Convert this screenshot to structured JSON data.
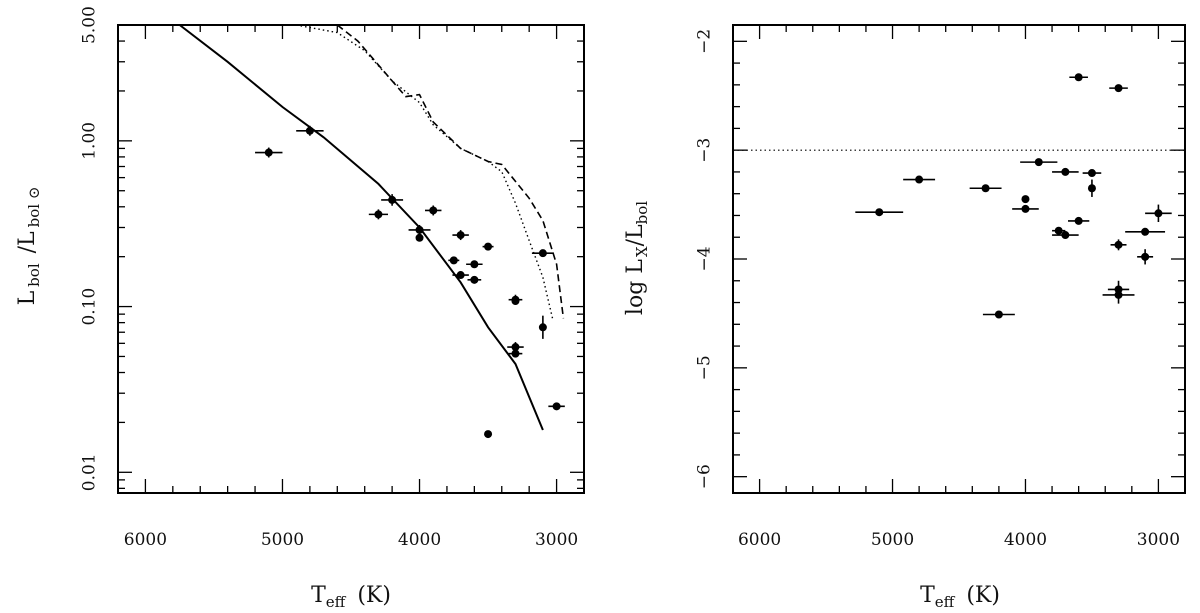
{
  "chart_data": [
    {
      "type": "scatter",
      "title": "",
      "xlabel": {
        "main": "T",
        "sub": "eff",
        "unit": "(K)"
      },
      "ylabel": {
        "main1": "L",
        "sub1": "bol",
        "sep": "/L",
        "sub2": "bol ⊙"
      },
      "xlim": [
        6200,
        2800
      ],
      "ylim": [
        0.0075,
        5.0
      ],
      "yscale": "log",
      "xticks": [
        6000,
        5000,
        4000,
        3000
      ],
      "xtick_labels": [
        "6000",
        "5000",
        "4000",
        "3000"
      ],
      "yticks": [
        0.01,
        0.1,
        1.0,
        5.0
      ],
      "ytick_labels": [
        "0.01",
        "0.10",
        "1.00",
        "5.00"
      ],
      "series": [
        {
          "name": "stars",
          "style": "points",
          "x": [
            5100,
            4800,
            4300,
            4200,
            4000,
            4000,
            3900,
            3750,
            3700,
            3700,
            3600,
            3600,
            3500,
            3500,
            3300,
            3300,
            3300,
            3300,
            3100,
            3100,
            3000
          ],
          "y": [
            0.85,
            1.15,
            0.36,
            0.44,
            0.29,
            0.26,
            0.38,
            0.19,
            0.27,
            0.155,
            0.18,
            0.145,
            0.23,
            0.017,
            0.11,
            0.108,
            0.057,
            0.052,
            0.21,
            0.075,
            0.025
          ],
          "xerr": [
            100,
            100,
            70,
            80,
            80,
            0,
            60,
            40,
            60,
            60,
            60,
            50,
            40,
            0,
            50,
            0,
            60,
            50,
            80,
            0,
            60
          ],
          "yerr_log": [
            0.03,
            0.03,
            0.03,
            0.035,
            0.03,
            0,
            0.03,
            0,
            0.03,
            0,
            0,
            0,
            0,
            0,
            0.03,
            0,
            0.03,
            0,
            0,
            0.07,
            0
          ]
        },
        {
          "name": "solid model",
          "style": "solid",
          "x": [
            5750,
            5400,
            5000,
            4700,
            4300,
            4000,
            3700,
            3500,
            3300,
            3100
          ],
          "y": [
            5.0,
            3.0,
            1.6,
            1.05,
            0.55,
            0.3,
            0.14,
            0.075,
            0.045,
            0.018
          ]
        },
        {
          "name": "dashed model",
          "style": "dashed",
          "x": [
            4600,
            4450,
            4200,
            4100,
            4000,
            3900,
            3700,
            3500,
            3400,
            3200,
            3100,
            3000,
            2950
          ],
          "y": [
            5.0,
            4.0,
            2.3,
            1.85,
            1.9,
            1.3,
            0.9,
            0.75,
            0.72,
            0.45,
            0.33,
            0.18,
            0.085
          ]
        },
        {
          "name": "dotted model",
          "style": "dotted",
          "x": [
            4900,
            4600,
            4400,
            4200,
            4000,
            3900,
            3700,
            3500,
            3400,
            3300,
            3200,
            3100,
            3030
          ],
          "y": [
            5.0,
            4.5,
            3.5,
            2.3,
            1.7,
            1.25,
            0.9,
            0.75,
            0.65,
            0.42,
            0.25,
            0.15,
            0.085
          ]
        }
      ]
    },
    {
      "type": "scatter",
      "title": "",
      "xlabel": {
        "main": "T",
        "sub": "eff",
        "unit": "(K)"
      },
      "ylabel": {
        "pre": "log L",
        "sub1": "X",
        "sep": "/L",
        "sub2": "bol"
      },
      "xlim": [
        6200,
        2800
      ],
      "ylim": [
        -6.15,
        -1.85
      ],
      "yscale": "linear",
      "xticks": [
        6000,
        5000,
        4000,
        3000
      ],
      "xtick_labels": [
        "6000",
        "5000",
        "4000",
        "3000"
      ],
      "yticks": [
        -6,
        -5,
        -4,
        -3,
        -2
      ],
      "ytick_labels": [
        "−6",
        "−5",
        "−4",
        "−3",
        "−2"
      ],
      "reference_line": {
        "y": -3.0,
        "style": "dotted"
      },
      "series": [
        {
          "name": "stars",
          "style": "points",
          "x": [
            5100,
            4800,
            4300,
            4200,
            4000,
            4000,
            3900,
            3750,
            3700,
            3700,
            3600,
            3600,
            3500,
            3500,
            3300,
            3300,
            3300,
            3300,
            3100,
            3100,
            3000
          ],
          "y": [
            -3.57,
            -3.27,
            -3.35,
            -4.51,
            -3.45,
            -3.54,
            -3.11,
            -3.74,
            -3.2,
            -3.78,
            -3.65,
            -2.33,
            -3.21,
            -3.35,
            -2.43,
            -3.87,
            -4.28,
            -4.33,
            -3.75,
            -3.98,
            -3.58
          ],
          "xerr": [
            180,
            120,
            120,
            120,
            0,
            100,
            140,
            50,
            100,
            100,
            80,
            70,
            70,
            0,
            70,
            60,
            80,
            120,
            150,
            60,
            100
          ],
          "yerr": [
            0,
            0,
            0,
            0,
            0,
            0,
            0,
            0,
            0,
            0,
            0,
            0,
            0,
            0.08,
            0,
            0.05,
            0.08,
            0.08,
            0,
            0.07,
            0.08
          ]
        }
      ]
    }
  ]
}
